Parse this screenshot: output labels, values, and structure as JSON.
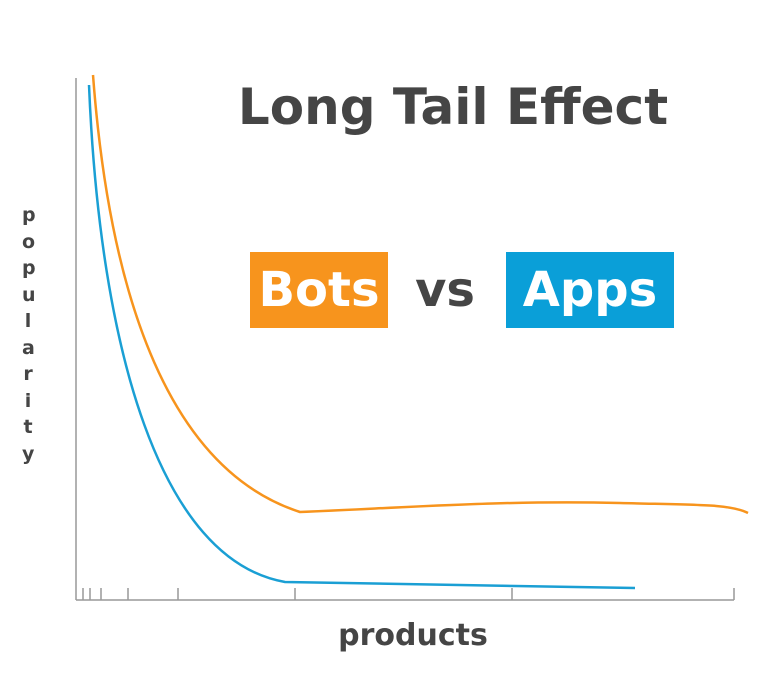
{
  "title": "Long Tail Effect",
  "legend": {
    "bots": "Bots",
    "vs": "vs",
    "apps": "Apps"
  },
  "axes": {
    "y_label": "popularity",
    "x_label": "products"
  }
}
